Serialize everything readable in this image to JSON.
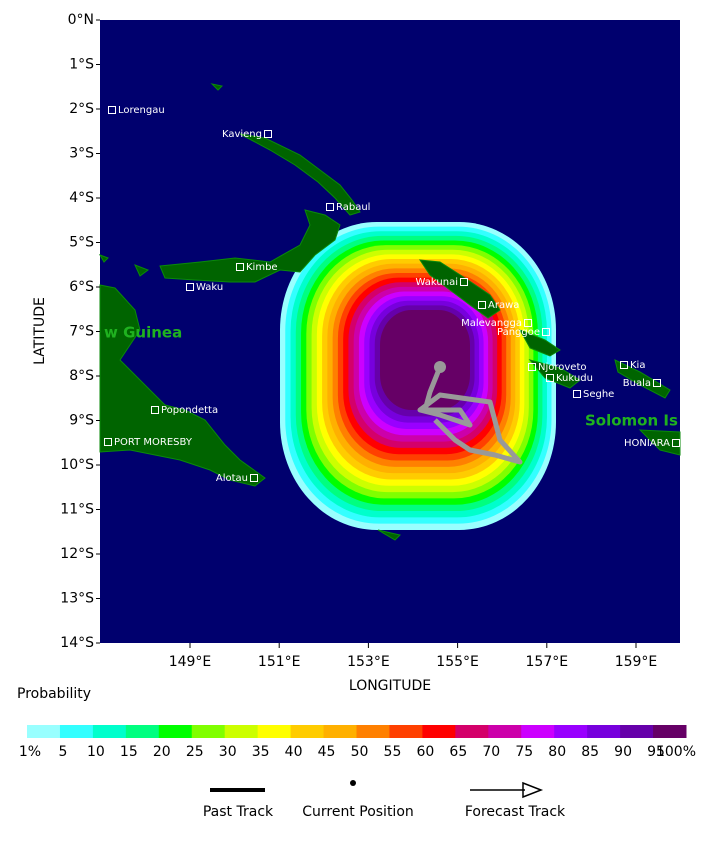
{
  "map": {
    "lat_labels": [
      "0°N",
      "1°S",
      "2°S",
      "3°S",
      "4°S",
      "5°S",
      "6°S",
      "7°S",
      "8°S",
      "9°S",
      "10°S",
      "11°S",
      "12°S",
      "13°S",
      "14°S"
    ],
    "lon_labels": [
      "149°E",
      "151°E",
      "153°E",
      "155°E",
      "157°E",
      "159°E"
    ],
    "x_axis_title": "LONGITUDE",
    "y_axis_title": "LATITUDE",
    "places": [
      "Lorengau",
      "Kavieng",
      "Rabaul",
      "Kimbe",
      "Waku",
      "Wakunai",
      "Arawa",
      "Malevangga",
      "Panggoe",
      "Njoroveto",
      "Kukudu",
      "Seghe",
      "Kia",
      "Buala",
      "Popondetta",
      "PORT MORESBY",
      "HONIARA",
      "Alotau"
    ],
    "regions": [
      "w Guinea",
      "Solomon Is"
    ]
  },
  "legend": {
    "title": "Probability",
    "colors": [
      "#99ffff",
      "#33ffff",
      "#00ffcc",
      "#00ff80",
      "#00ff00",
      "#80ff00",
      "#ccff00",
      "#ffff00",
      "#ffcc00",
      "#ffb000",
      "#ff8000",
      "#ff4000",
      "#ff0000",
      "#d4006a",
      "#cc00aa",
      "#cc00ff",
      "#9900ff",
      "#7700dd",
      "#6600aa",
      "#660066"
    ],
    "labels": [
      "1%",
      "5",
      "10",
      "15",
      "20",
      "25",
      "30",
      "35",
      "40",
      "45",
      "50",
      "55",
      "60",
      "65",
      "70",
      "75",
      "80",
      "85",
      "90",
      "95",
      "100%"
    ],
    "items": [
      "Past Track",
      "Current Position",
      "Forecast Track"
    ]
  }
}
